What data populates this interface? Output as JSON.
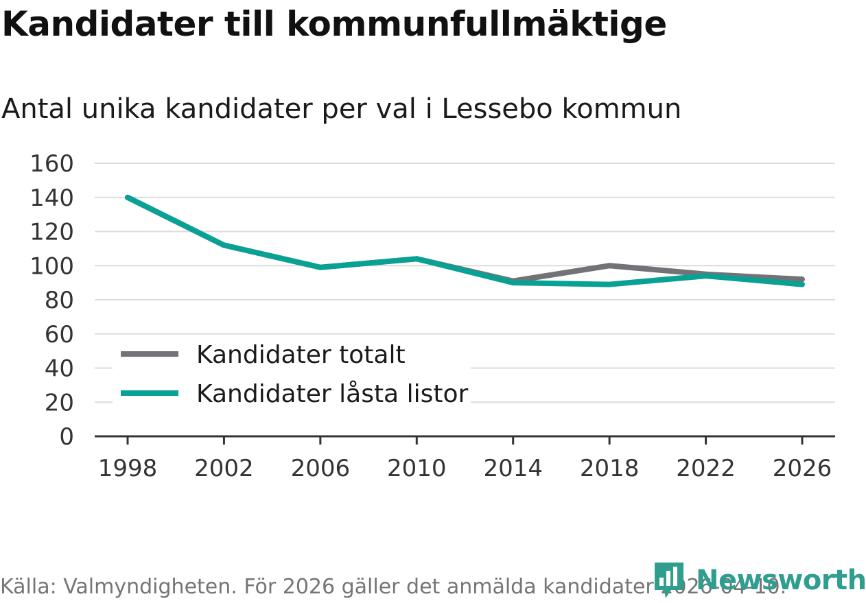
{
  "header": {
    "title": "Kandidater till kommunfullmäktige",
    "subtitle": "Antal unika kandidater per val i Lessebo kommun"
  },
  "footer": {
    "source": "Källa: Valmyndigheten. För 2026 gäller det anmälda kandidater 2026-04-10.",
    "brand": "Newsworthy",
    "brand_icon": "bar-chart-logo-icon"
  },
  "colors": {
    "total": "#737277",
    "locked": "#0aa195",
    "grid": "#dcdcdc",
    "axis": "#333333",
    "brand": "#2f9e8f"
  },
  "chart_data": {
    "type": "line",
    "title": "Kandidater till kommunfullmäktige",
    "subtitle": "Antal unika kandidater per val i Lessebo kommun",
    "categories": [
      "1998",
      "2002",
      "2006",
      "2010",
      "2014",
      "2018",
      "2022",
      "2026"
    ],
    "yticks": [
      "0",
      "20",
      "40",
      "60",
      "80",
      "100",
      "120",
      "140",
      "160"
    ],
    "ylim": [
      0,
      160
    ],
    "series": [
      {
        "name": "Kandidater totalt",
        "values": [
          140,
          112,
          99,
          104,
          91,
          100,
          95,
          92
        ]
      },
      {
        "name": "Kandidater låsta listor",
        "values": [
          140,
          112,
          99,
          104,
          90,
          89,
          94,
          89
        ]
      }
    ],
    "legend_position": "bottom-left",
    "grid": true
  }
}
